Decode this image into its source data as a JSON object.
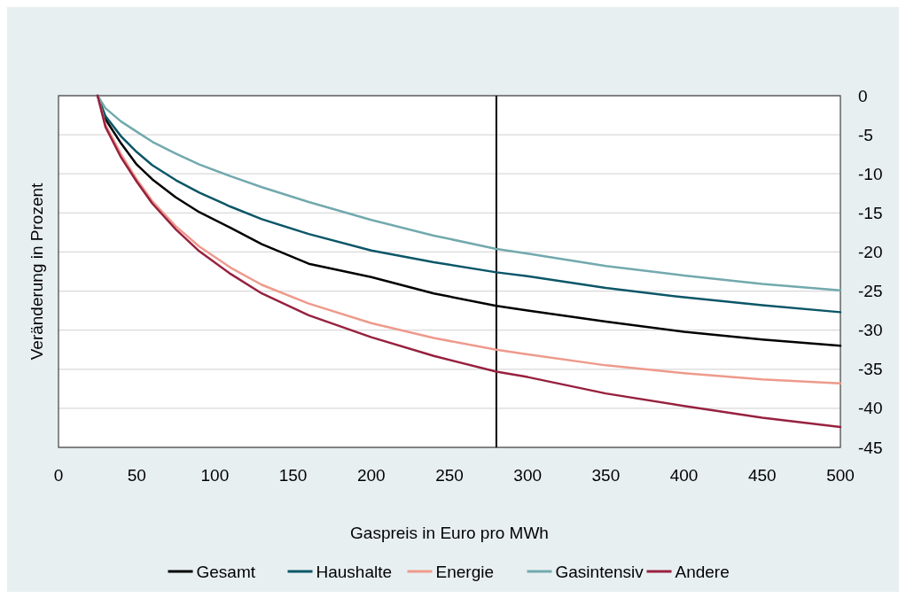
{
  "chart_data": {
    "type": "line",
    "xlabel": "Gaspreis in Euro pro MWh",
    "ylabel": "Veränderung in Prozent",
    "x": [
      25,
      30,
      40,
      50,
      60,
      75,
      90,
      110,
      130,
      160,
      200,
      240,
      280,
      300,
      350,
      400,
      450,
      500
    ],
    "xlim": [
      0,
      500
    ],
    "xticks": [
      0,
      50,
      100,
      150,
      200,
      250,
      300,
      350,
      400,
      450,
      500
    ],
    "ylim": [
      -45,
      0
    ],
    "yticks": [
      0,
      -5,
      -10,
      -15,
      -20,
      -25,
      -30,
      -35,
      -40,
      -45
    ],
    "grid": "y",
    "legend": "bottom",
    "line_style": "solid",
    "marker": "none",
    "ref_lines": [
      {
        "axis": "x",
        "value": 280,
        "color": "#000000"
      }
    ],
    "series": [
      {
        "name": "Gesamt",
        "color": "#000000",
        "values": [
          0,
          -3,
          -6.1,
          -8.8,
          -10.7,
          -13,
          -14.9,
          -16.9,
          -19,
          -21.5,
          -23.2,
          -25.3,
          -26.9,
          -27.5,
          -28.9,
          -30.2,
          -31.2,
          -32
        ]
      },
      {
        "name": "Haushalte",
        "color": "#0b5668",
        "values": [
          0,
          -2.6,
          -5.2,
          -7.2,
          -8.9,
          -10.8,
          -12.4,
          -14.2,
          -15.8,
          -17.7,
          -19.8,
          -21.3,
          -22.6,
          -23.1,
          -24.6,
          -25.8,
          -26.8,
          -27.7
        ]
      },
      {
        "name": "Energie",
        "color": "#ee9a8c",
        "values": [
          0,
          -3.7,
          -7.5,
          -10.7,
          -13.5,
          -16.7,
          -19.3,
          -22,
          -24.2,
          -26.6,
          -29.1,
          -31,
          -32.5,
          -33.1,
          -34.5,
          -35.5,
          -36.3,
          -36.8
        ]
      },
      {
        "name": "Gasintensiv",
        "color": "#72a9ad",
        "values": [
          0,
          -1.6,
          -3.3,
          -4.6,
          -5.9,
          -7.4,
          -8.8,
          -10.3,
          -11.7,
          -13.6,
          -15.9,
          -17.9,
          -19.6,
          -20.2,
          -21.8,
          -23,
          -24.1,
          -24.9
        ]
      },
      {
        "name": "Andere",
        "color": "#97213f",
        "values": [
          0,
          -4,
          -7.9,
          -11,
          -13.8,
          -17.1,
          -19.9,
          -22.8,
          -25.3,
          -28.1,
          -30.9,
          -33.3,
          -35.3,
          -36,
          -38.1,
          -39.7,
          -41.2,
          -42.4
        ]
      }
    ]
  }
}
